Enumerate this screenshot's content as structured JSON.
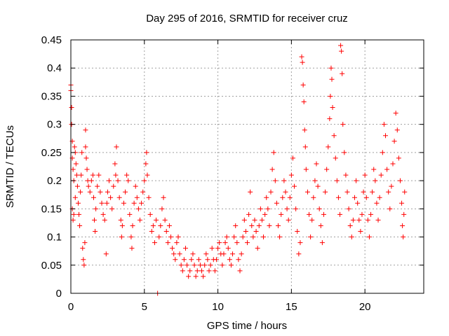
{
  "chart_data": {
    "type": "scatter",
    "title": "Day 295 of 2016, SRMTID for receiver cruz",
    "xlabel": "GPS time / hours",
    "ylabel": "SRMTID / TECUs",
    "xlim": [
      0,
      24
    ],
    "ylim": [
      0,
      0.45
    ],
    "grid": true,
    "marker": "+",
    "color": "#ff0000",
    "x_ticks": [
      {
        "value": 0,
        "label": "0"
      },
      {
        "value": 5,
        "label": "5"
      },
      {
        "value": 10,
        "label": "10"
      },
      {
        "value": 15,
        "label": "15"
      },
      {
        "value": 20,
        "label": "20"
      }
    ],
    "y_ticks": [
      {
        "value": 0,
        "label": "0"
      },
      {
        "value": 0.05,
        "label": "0.05"
      },
      {
        "value": 0.1,
        "label": "0.1"
      },
      {
        "value": 0.15,
        "label": "0.15"
      },
      {
        "value": 0.2,
        "label": "0.2"
      },
      {
        "value": 0.25,
        "label": "0.25"
      },
      {
        "value": 0.3,
        "label": "0.3"
      },
      {
        "value": 0.35,
        "label": "0.35"
      },
      {
        "value": 0.4,
        "label": "0.4"
      },
      {
        "value": 0.45,
        "label": "0.45"
      }
    ],
    "series": [
      {
        "name": "SRMTID",
        "points": [
          [
            0.0,
            0.37
          ],
          [
            0.0,
            0.36
          ],
          [
            0.05,
            0.33
          ],
          [
            0.05,
            0.3
          ],
          [
            0.1,
            0.27
          ],
          [
            0.1,
            0.24
          ],
          [
            0.15,
            0.22
          ],
          [
            0.2,
            0.2
          ],
          [
            0.25,
            0.26
          ],
          [
            0.3,
            0.25
          ],
          [
            0.35,
            0.23
          ],
          [
            0.4,
            0.21
          ],
          [
            0.1,
            0.15
          ],
          [
            0.15,
            0.13
          ],
          [
            0.2,
            0.14
          ],
          [
            0.3,
            0.17
          ],
          [
            0.45,
            0.19
          ],
          [
            0.5,
            0.16
          ],
          [
            0.55,
            0.14
          ],
          [
            0.6,
            0.12
          ],
          [
            0.65,
            0.18
          ],
          [
            0.7,
            0.21
          ],
          [
            0.75,
            0.25
          ],
          [
            0.8,
            0.08
          ],
          [
            0.85,
            0.06
          ],
          [
            0.9,
            0.05
          ],
          [
            0.95,
            0.09
          ],
          [
            1.0,
            0.29
          ],
          [
            1.0,
            0.26
          ],
          [
            1.05,
            0.24
          ],
          [
            1.1,
            0.22
          ],
          [
            1.15,
            0.2
          ],
          [
            1.2,
            0.19
          ],
          [
            1.3,
            0.18
          ],
          [
            1.4,
            0.2
          ],
          [
            1.5,
            0.21
          ],
          [
            1.55,
            0.17
          ],
          [
            1.6,
            0.13
          ],
          [
            1.65,
            0.11
          ],
          [
            1.7,
            0.15
          ],
          [
            1.8,
            0.19
          ],
          [
            1.9,
            0.21
          ],
          [
            2.0,
            0.18
          ],
          [
            2.1,
            0.16
          ],
          [
            2.2,
            0.14
          ],
          [
            2.3,
            0.13
          ],
          [
            2.4,
            0.07
          ],
          [
            2.45,
            0.16
          ],
          [
            2.5,
            0.18
          ],
          [
            2.6,
            0.2
          ],
          [
            2.7,
            0.17
          ],
          [
            2.8,
            0.15
          ],
          [
            2.9,
            0.19
          ],
          [
            3.0,
            0.23
          ],
          [
            3.05,
            0.21
          ],
          [
            3.1,
            0.26
          ],
          [
            3.2,
            0.2
          ],
          [
            3.3,
            0.17
          ],
          [
            3.4,
            0.13
          ],
          [
            3.45,
            0.1
          ],
          [
            3.5,
            0.12
          ],
          [
            3.6,
            0.16
          ],
          [
            3.7,
            0.18
          ],
          [
            3.8,
            0.21
          ],
          [
            3.9,
            0.2
          ],
          [
            4.0,
            0.14
          ],
          [
            4.1,
            0.1
          ],
          [
            4.15,
            0.08
          ],
          [
            4.2,
            0.12
          ],
          [
            4.3,
            0.16
          ],
          [
            4.4,
            0.19
          ],
          [
            4.5,
            0.17
          ],
          [
            4.6,
            0.15
          ],
          [
            4.7,
            0.13
          ],
          [
            4.8,
            0.16
          ],
          [
            4.9,
            0.18
          ],
          [
            5.0,
            0.2
          ],
          [
            5.1,
            0.23
          ],
          [
            5.15,
            0.25
          ],
          [
            5.2,
            0.21
          ],
          [
            5.3,
            0.17
          ],
          [
            5.4,
            0.14
          ],
          [
            5.5,
            0.11
          ],
          [
            5.6,
            0.12
          ],
          [
            5.7,
            0.09
          ],
          [
            5.8,
            0.13
          ],
          [
            5.9,
            0.0
          ],
          [
            6.0,
            0.1
          ],
          [
            6.1,
            0.12
          ],
          [
            6.2,
            0.15
          ],
          [
            6.3,
            0.17
          ],
          [
            6.4,
            0.13
          ],
          [
            6.5,
            0.11
          ],
          [
            6.6,
            0.09
          ],
          [
            6.7,
            0.12
          ],
          [
            6.8,
            0.1
          ],
          [
            6.9,
            0.08
          ],
          [
            7.0,
            0.07
          ],
          [
            7.1,
            0.06
          ],
          [
            7.2,
            0.09
          ],
          [
            7.3,
            0.1
          ],
          [
            7.4,
            0.07
          ],
          [
            7.5,
            0.05
          ],
          [
            7.6,
            0.04
          ],
          [
            7.7,
            0.06
          ],
          [
            7.8,
            0.08
          ],
          [
            7.9,
            0.05
          ],
          [
            8.0,
            0.03
          ],
          [
            8.1,
            0.04
          ],
          [
            8.2,
            0.06
          ],
          [
            8.3,
            0.07
          ],
          [
            8.4,
            0.05
          ],
          [
            8.5,
            0.03
          ],
          [
            8.6,
            0.04
          ],
          [
            8.7,
            0.06
          ],
          [
            8.8,
            0.05
          ],
          [
            8.9,
            0.04
          ],
          [
            9.0,
            0.03
          ],
          [
            9.1,
            0.05
          ],
          [
            9.2,
            0.07
          ],
          [
            9.3,
            0.06
          ],
          [
            9.4,
            0.04
          ],
          [
            9.5,
            0.05
          ],
          [
            9.6,
            0.08
          ],
          [
            9.7,
            0.06
          ],
          [
            9.8,
            0.04
          ],
          [
            9.9,
            0.06
          ],
          [
            10.0,
            0.08
          ],
          [
            10.1,
            0.09
          ],
          [
            10.2,
            0.07
          ],
          [
            10.3,
            0.05
          ],
          [
            10.4,
            0.07
          ],
          [
            10.5,
            0.09
          ],
          [
            10.6,
            0.1
          ],
          [
            10.7,
            0.08
          ],
          [
            10.8,
            0.06
          ],
          [
            10.9,
            0.05
          ],
          [
            11.0,
            0.07
          ],
          [
            11.1,
            0.1
          ],
          [
            11.2,
            0.12
          ],
          [
            11.3,
            0.09
          ],
          [
            11.4,
            0.06
          ],
          [
            11.5,
            0.04
          ],
          [
            11.6,
            0.07
          ],
          [
            11.7,
            0.1
          ],
          [
            11.8,
            0.13
          ],
          [
            11.9,
            0.11
          ],
          [
            12.0,
            0.09
          ],
          [
            12.1,
            0.14
          ],
          [
            12.2,
            0.18
          ],
          [
            12.3,
            0.12
          ],
          [
            12.4,
            0.1
          ],
          [
            12.5,
            0.13
          ],
          [
            12.6,
            0.11
          ],
          [
            12.7,
            0.08
          ],
          [
            12.8,
            0.12
          ],
          [
            12.9,
            0.15
          ],
          [
            13.0,
            0.13
          ],
          [
            13.1,
            0.1
          ],
          [
            13.2,
            0.14
          ],
          [
            13.3,
            0.17
          ],
          [
            13.4,
            0.15
          ],
          [
            13.5,
            0.12
          ],
          [
            13.6,
            0.18
          ],
          [
            13.7,
            0.22
          ],
          [
            13.8,
            0.25
          ],
          [
            13.9,
            0.2
          ],
          [
            14.0,
            0.16
          ],
          [
            14.1,
            0.12
          ],
          [
            14.2,
            0.1
          ],
          [
            14.3,
            0.14
          ],
          [
            14.4,
            0.17
          ],
          [
            14.5,
            0.2
          ],
          [
            14.6,
            0.18
          ],
          [
            14.7,
            0.15
          ],
          [
            14.8,
            0.13
          ],
          [
            14.9,
            0.17
          ],
          [
            15.0,
            0.21
          ],
          [
            15.1,
            0.24
          ],
          [
            15.2,
            0.19
          ],
          [
            15.3,
            0.15
          ],
          [
            15.4,
            0.11
          ],
          [
            15.5,
            0.07
          ],
          [
            15.6,
            0.09
          ],
          [
            15.7,
            0.42
          ],
          [
            15.75,
            0.41
          ],
          [
            15.8,
            0.37
          ],
          [
            15.85,
            0.34
          ],
          [
            15.9,
            0.29
          ],
          [
            15.95,
            0.26
          ],
          [
            16.0,
            0.22
          ],
          [
            16.1,
            0.18
          ],
          [
            16.2,
            0.14
          ],
          [
            16.3,
            0.1
          ],
          [
            16.4,
            0.13
          ],
          [
            16.5,
            0.17
          ],
          [
            16.6,
            0.2
          ],
          [
            16.7,
            0.23
          ],
          [
            16.8,
            0.19
          ],
          [
            16.9,
            0.15
          ],
          [
            17.0,
            0.12
          ],
          [
            17.1,
            0.09
          ],
          [
            17.2,
            0.14
          ],
          [
            17.3,
            0.18
          ],
          [
            17.4,
            0.22
          ],
          [
            17.5,
            0.26
          ],
          [
            17.6,
            0.31
          ],
          [
            17.65,
            0.35
          ],
          [
            17.7,
            0.4
          ],
          [
            17.75,
            0.38
          ],
          [
            17.8,
            0.33
          ],
          [
            17.9,
            0.28
          ],
          [
            18.0,
            0.24
          ],
          [
            18.1,
            0.2
          ],
          [
            18.2,
            0.17
          ],
          [
            18.3,
            0.14
          ],
          [
            18.35,
            0.44
          ],
          [
            18.4,
            0.43
          ],
          [
            18.45,
            0.39
          ],
          [
            18.5,
            0.3
          ],
          [
            18.6,
            0.25
          ],
          [
            18.7,
            0.21
          ],
          [
            18.8,
            0.18
          ],
          [
            18.9,
            0.15
          ],
          [
            19.0,
            0.12
          ],
          [
            19.1,
            0.1
          ],
          [
            19.2,
            0.13
          ],
          [
            19.3,
            0.17
          ],
          [
            19.4,
            0.2
          ],
          [
            19.5,
            0.16
          ],
          [
            19.6,
            0.13
          ],
          [
            19.7,
            0.11
          ],
          [
            19.8,
            0.14
          ],
          [
            19.9,
            0.18
          ],
          [
            20.0,
            0.21
          ],
          [
            20.1,
            0.17
          ],
          [
            20.2,
            0.13
          ],
          [
            20.3,
            0.1
          ],
          [
            20.4,
            0.14
          ],
          [
            20.5,
            0.18
          ],
          [
            20.6,
            0.22
          ],
          [
            20.7,
            0.2
          ],
          [
            20.8,
            0.16
          ],
          [
            20.9,
            0.13
          ],
          [
            21.0,
            0.17
          ],
          [
            21.1,
            0.21
          ],
          [
            21.2,
            0.25
          ],
          [
            21.3,
            0.3
          ],
          [
            21.4,
            0.28
          ],
          [
            21.5,
            0.22
          ],
          [
            21.6,
            0.18
          ],
          [
            21.7,
            0.15
          ],
          [
            21.8,
            0.19
          ],
          [
            21.9,
            0.23
          ],
          [
            22.0,
            0.27
          ],
          [
            22.1,
            0.32
          ],
          [
            22.2,
            0.29
          ],
          [
            22.3,
            0.24
          ],
          [
            22.4,
            0.2
          ],
          [
            22.5,
            0.16
          ],
          [
            22.55,
            0.12
          ],
          [
            22.6,
            0.1
          ],
          [
            22.65,
            0.14
          ],
          [
            22.7,
            0.18
          ]
        ]
      }
    ]
  }
}
